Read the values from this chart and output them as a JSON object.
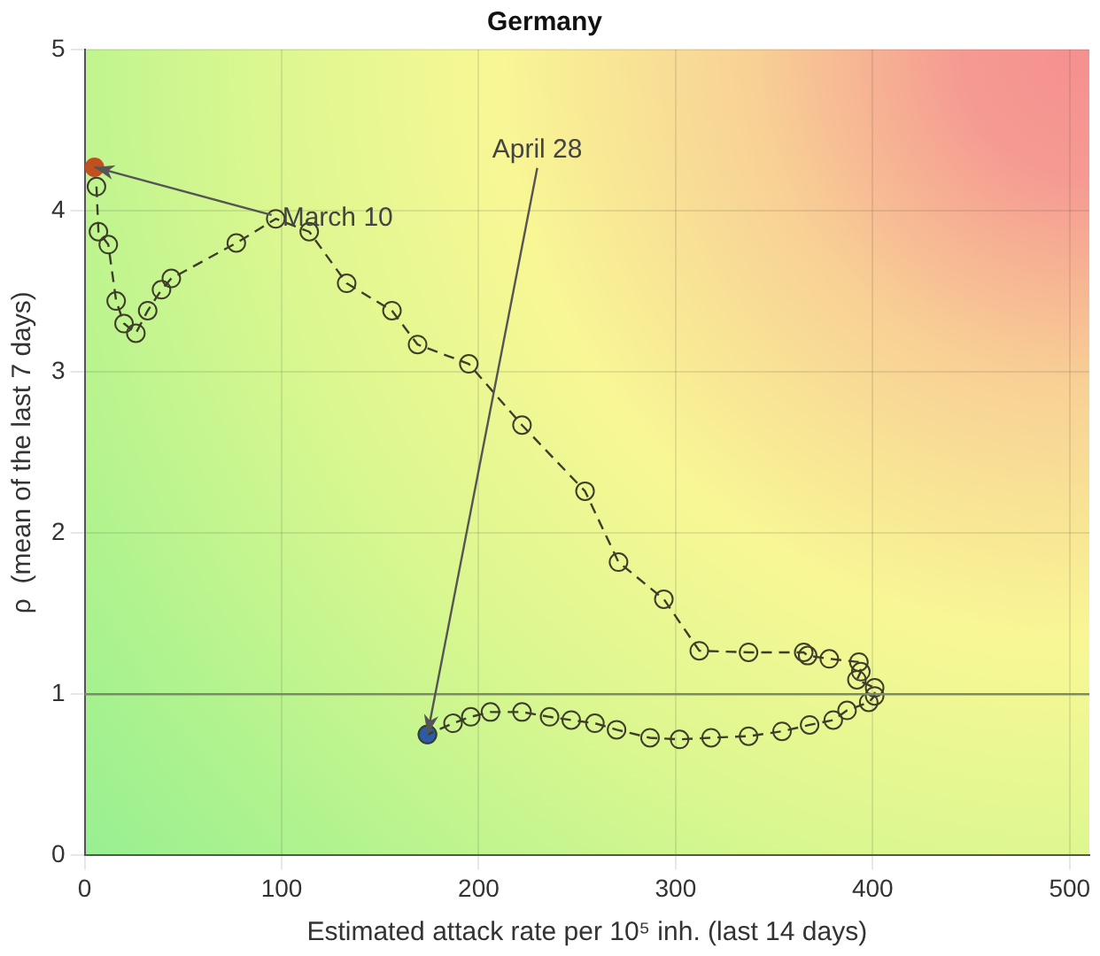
{
  "chart_data": {
    "type": "line",
    "title": "Germany",
    "xlabel": "Estimated attack rate per 10⁵ inh. (last 14 days)",
    "ylabel": "ρ  (mean of the last 7 days)",
    "xlim": [
      0,
      510
    ],
    "xticks": [
      0,
      100,
      200,
      300,
      400,
      500
    ],
    "ylim": [
      0,
      5
    ],
    "yticks": [
      0,
      1,
      2,
      3,
      4,
      5
    ],
    "grid": true,
    "legend": false,
    "series": [
      {
        "type": "line",
        "color": "#3d3d2a",
        "marker": "circle",
        "line_style": "dashed",
        "x": [
          6,
          7,
          12,
          16,
          20,
          26,
          32,
          39,
          44,
          77,
          97,
          114,
          133,
          156,
          169,
          195,
          222,
          254,
          271,
          294,
          312,
          337,
          365,
          367,
          378,
          393,
          394,
          392,
          401,
          401,
          398,
          387,
          380,
          368,
          354,
          337,
          318,
          302,
          287,
          270,
          259,
          247,
          236,
          222,
          206,
          196,
          187,
          174
        ],
        "values": [
          4.15,
          3.87,
          3.79,
          3.44,
          3.3,
          3.24,
          3.38,
          3.51,
          3.58,
          3.8,
          3.95,
          3.87,
          3.55,
          3.38,
          3.17,
          3.05,
          2.67,
          2.26,
          1.82,
          1.59,
          1.27,
          1.26,
          1.26,
          1.24,
          1.22,
          1.2,
          1.14,
          1.09,
          1.04,
          0.99,
          0.95,
          0.9,
          0.84,
          0.81,
          0.77,
          0.74,
          0.73,
          0.72,
          0.73,
          0.78,
          0.82,
          0.84,
          0.86,
          0.89,
          0.89,
          0.86,
          0.82,
          0.75
        ]
      },
      {
        "type": "scatter",
        "color": "#c0501f",
        "marker": "circle",
        "x": [
          5
        ],
        "values": [
          4.27
        ]
      },
      {
        "type": "scatter",
        "color": "#2a5ca8",
        "marker": "circle",
        "x": [
          174
        ],
        "values": [
          0.75
        ]
      }
    ],
    "ref_lines": [
      {
        "axis": "y",
        "value": 1,
        "color": "#7a8a6a"
      }
    ],
    "annotations": [
      {
        "text": "March 10",
        "x": 5,
        "y": 4.27
      },
      {
        "text": "April 28",
        "x": 174,
        "y": 0.75
      }
    ]
  }
}
